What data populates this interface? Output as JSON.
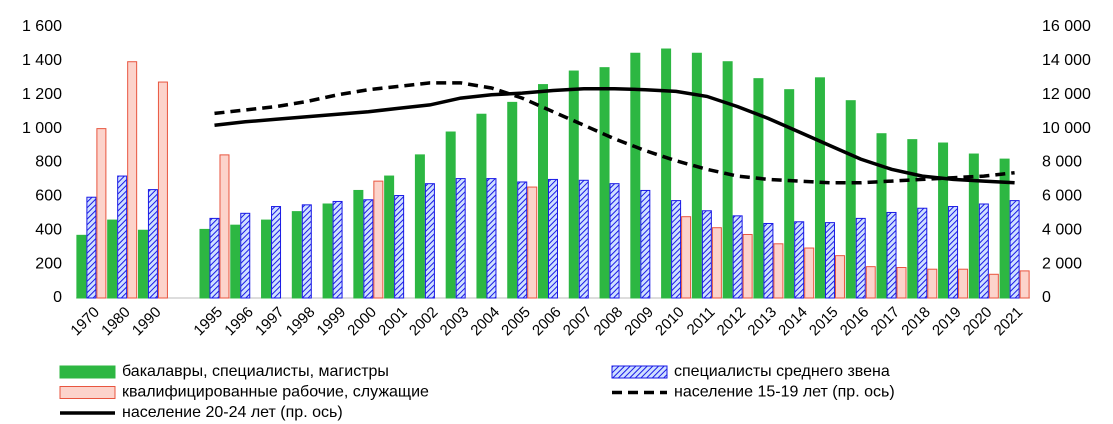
{
  "chart_data": {
    "type": "bar",
    "categories": [
      "1970",
      "1980",
      "1990",
      null,
      "1995",
      "1996",
      "1997",
      "1998",
      "1999",
      "2000",
      "2001",
      "2002",
      "2003",
      "2004",
      "2005",
      "2006",
      "2007",
      "2008",
      "2009",
      "2010",
      "2011",
      "2012",
      "2013",
      "2014",
      "2015",
      "2016",
      "2017",
      "2018",
      "2019",
      "2020",
      "2021"
    ],
    "series": [
      {
        "name": "бакалавры, специалисты, магистры",
        "type": "bar",
        "color": "#2db742",
        "edgecolor": "#2db742",
        "values": [
          370,
          460,
          400,
          null,
          405,
          430,
          460,
          510,
          555,
          635,
          720,
          845,
          980,
          1085,
          1155,
          1260,
          1340,
          1360,
          1445,
          1470,
          1445,
          1395,
          1295,
          1230,
          1300,
          1165,
          970,
          935,
          915,
          850,
          820
        ]
      },
      {
        "name": "специалисты среднего звена",
        "type": "bar",
        "color": "#1a1ae6",
        "edgecolor": "#1a1ae6",
        "hatched": true,
        "values": [
          595,
          720,
          640,
          null,
          470,
          500,
          540,
          550,
          570,
          580,
          605,
          675,
          705,
          705,
          685,
          700,
          695,
          675,
          635,
          575,
          515,
          485,
          440,
          450,
          445,
          470,
          505,
          530,
          540,
          555,
          575
        ]
      },
      {
        "name": "квалифицированные рабочие, служащие",
        "type": "bar",
        "color": "#fcd3cb",
        "edgecolor": "#e8553f",
        "values": [
          1000,
          1395,
          1275,
          null,
          845,
          null,
          null,
          null,
          null,
          690,
          null,
          null,
          null,
          null,
          655,
          null,
          null,
          null,
          null,
          480,
          415,
          375,
          320,
          295,
          250,
          185,
          180,
          170,
          170,
          140,
          160
        ]
      },
      {
        "name": "население 15-19 лет (пр. ось)",
        "type": "line",
        "axis": "y2",
        "color": "#000000",
        "dashed": true,
        "values": [
          null,
          null,
          null,
          null,
          10900,
          11100,
          11300,
          11600,
          12000,
          12300,
          12500,
          12700,
          12700,
          12400,
          11800,
          11000,
          10200,
          9400,
          8700,
          8100,
          7600,
          7200,
          7000,
          6900,
          6800,
          6800,
          6900,
          7000,
          7100,
          7200,
          7400
        ]
      },
      {
        "name": "население 20-24 лет (пр. ось)",
        "type": "line",
        "axis": "y2",
        "color": "#000000",
        "dashed": false,
        "values": [
          null,
          null,
          null,
          null,
          10200,
          10400,
          10550,
          10700,
          10850,
          11000,
          11200,
          11400,
          11800,
          12000,
          12100,
          12250,
          12350,
          12350,
          12300,
          12200,
          11900,
          11300,
          10600,
          9800,
          9000,
          8200,
          7600,
          7200,
          7000,
          6900,
          6800
        ]
      }
    ],
    "ylim": [
      0,
      1600
    ],
    "yticks": [
      0,
      200,
      400,
      600,
      800,
      {
        "value": 1000,
        "label": "1 000"
      },
      {
        "value": 1200,
        "label": "1 200"
      },
      {
        "value": 1400,
        "label": "1 400"
      },
      {
        "value": 1600,
        "label": "1 600"
      }
    ],
    "y2lim": [
      0,
      16000
    ],
    "y2ticks": [
      0,
      {
        "value": 2000,
        "label": "2 000"
      },
      {
        "value": 4000,
        "label": "4 000"
      },
      {
        "value": 6000,
        "label": "6 000"
      },
      {
        "value": 8000,
        "label": "8 000"
      },
      {
        "value": 10000,
        "label": "10 000"
      },
      {
        "value": 12000,
        "label": "12 000"
      },
      {
        "value": 14000,
        "label": "14 000"
      },
      {
        "value": 16000,
        "label": "16 000"
      }
    ],
    "grid": false,
    "legend": "bottom"
  }
}
